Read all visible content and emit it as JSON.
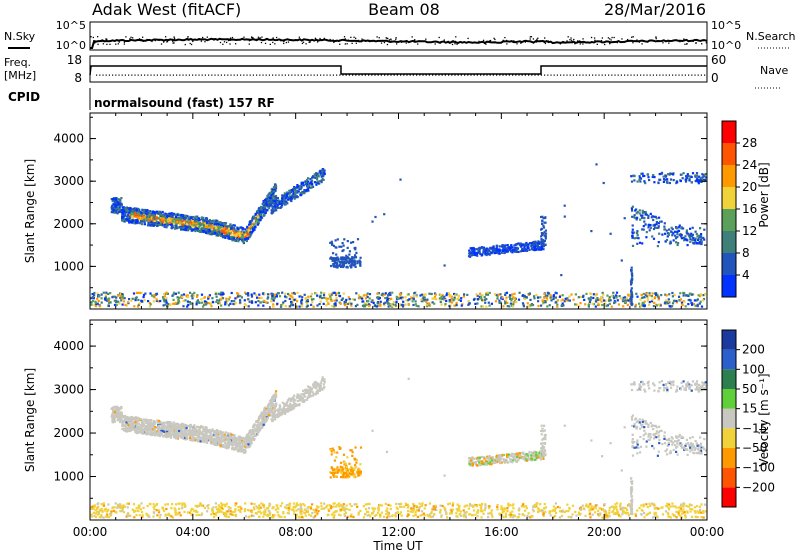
{
  "header": {
    "station": "Adak West (fitACF)",
    "beam": "Beam 08",
    "date": "28/Mar/2016"
  },
  "strip_noise": {
    "left_label": "N.Sky",
    "left_ticks": [
      "10^5",
      "10^0"
    ],
    "right_label": "N.Search",
    "right_ticks": [
      "10^5",
      "10^0"
    ]
  },
  "strip_freq": {
    "left_label_top": "Freq.",
    "left_label_bottom": "[MHz]",
    "left_ticks": [
      "18",
      "8"
    ],
    "right_label": "Nave",
    "right_ticks": [
      "60",
      "0"
    ]
  },
  "strip_cpid": {
    "label": "CPID",
    "text": "normalsound (fast) 157 RF"
  },
  "chart_data": [
    {
      "type": "heatmap",
      "panel": "power",
      "ylabel": "Slant Range [km]",
      "y_ticks": [
        "1000",
        "2000",
        "3000",
        "4000"
      ],
      "ylim": [
        0,
        4600
      ],
      "xlim_hours": [
        0,
        24
      ],
      "colorbar": {
        "label": "Power [dB]",
        "ticks": [
          "4",
          "8",
          "12",
          "16",
          "20",
          "24",
          "28"
        ],
        "range": [
          0,
          32
        ],
        "colors": [
          "#0033ff",
          "#2255bb",
          "#3f7f7a",
          "#5aa05a",
          "#f2d23a",
          "#ff9900",
          "#ff5500",
          "#ff0000"
        ]
      },
      "echo_regions": [
        {
          "t0": 0.8,
          "t1": 7.2,
          "r_mid": "arc",
          "r_width": 350,
          "level": "strong"
        },
        {
          "t0": 7.0,
          "t1": 9.1,
          "r0": 2400,
          "r1": 3200,
          "level": "weak"
        },
        {
          "t0": 9.3,
          "t1": 10.5,
          "r0": 800,
          "r1": 1700,
          "level": "weak"
        },
        {
          "t0": 14.7,
          "t1": 17.6,
          "r0": 1300,
          "r1": 2200,
          "level": "weak"
        },
        {
          "t0": 21.0,
          "t1": 24.0,
          "r0": 1300,
          "r1": 3300,
          "level": "weak"
        },
        {
          "t0": 0.0,
          "t1": 24.0,
          "r0": 100,
          "r1": 400,
          "level": "ground"
        }
      ]
    },
    {
      "type": "heatmap",
      "panel": "velocity",
      "ylabel": "Slant Range [km]",
      "y_ticks": [
        "1000",
        "2000",
        "3000",
        "4000"
      ],
      "ylim": [
        0,
        4600
      ],
      "xlim_hours": [
        0,
        24
      ],
      "colorbar": {
        "label": "Velocity [m s⁻¹]",
        "ticks": [
          "200",
          "100",
          "50",
          "15",
          "−15",
          "−50",
          "−100",
          "−200"
        ],
        "colors": [
          "#1a3a9e",
          "#2a5fcc",
          "#2e7f4f",
          "#5fcf3a",
          "#c8c8c0",
          "#f2d23a",
          "#ff9900",
          "#ff5500",
          "#ff0000"
        ]
      },
      "echo_regions": [
        {
          "t0": 0.8,
          "t1": 7.2,
          "r_mid": "arc",
          "r_width": 350,
          "velocity": "ground-scatter (grey)"
        },
        {
          "t0": 7.0,
          "t1": 9.1,
          "r0": 2400,
          "r1": 3200,
          "velocity": "grey"
        },
        {
          "t0": 9.3,
          "t1": 10.5,
          "r0": 800,
          "r1": 1700,
          "velocity": "negative (orange)"
        },
        {
          "t0": 14.7,
          "t1": 17.6,
          "r0": 1300,
          "r1": 2200,
          "velocity": "mixed grey/green"
        },
        {
          "t0": 21.0,
          "t1": 24.0,
          "r0": 1300,
          "r1": 3300,
          "velocity": "grey"
        },
        {
          "t0": 0.0,
          "t1": 24.0,
          "r0": 100,
          "r1": 400,
          "velocity": "negative (yellow)"
        }
      ]
    }
  ],
  "x_axis": {
    "ticks": [
      "00:00",
      "04:00",
      "08:00",
      "12:00",
      "16:00",
      "20:00",
      "00:00"
    ],
    "label": "Time UT"
  }
}
